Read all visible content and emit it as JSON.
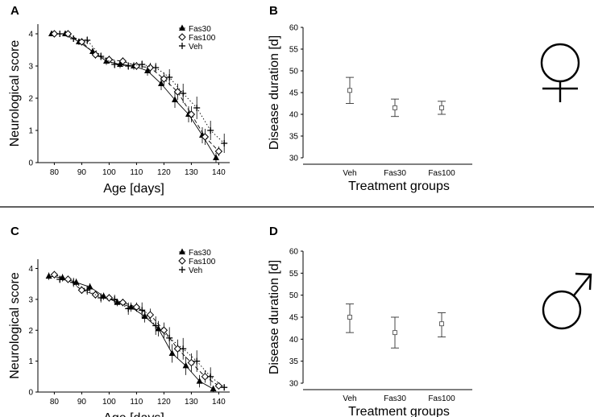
{
  "figure": {
    "separator": true
  },
  "chart_data": [
    {
      "id": "A",
      "panel_label": "A",
      "type": "line",
      "xlabel": "Age [days]",
      "ylabel": "Neurological score",
      "xlim": [
        74,
        144
      ],
      "ylim": [
        0,
        4.3
      ],
      "xticks": [
        80,
        90,
        100,
        110,
        120,
        130,
        140
      ],
      "yticks": [
        0,
        1,
        2,
        3,
        4
      ],
      "legend_position": "top-right",
      "legend": [
        "Fas30",
        "Fas100",
        "Veh"
      ],
      "series": [
        {
          "name": "Fas30",
          "marker": "filled-triangle",
          "line": "solid",
          "x": [
            79,
            84,
            89,
            94,
            99,
            104,
            109,
            114,
            119,
            124,
            129,
            134,
            139
          ],
          "y": [
            4.0,
            4.0,
            3.75,
            3.45,
            3.15,
            3.05,
            3.0,
            2.85,
            2.45,
            1.95,
            1.5,
            0.85,
            0.15
          ],
          "err": [
            0,
            0,
            0.1,
            0.12,
            0.12,
            0.12,
            0.12,
            0.15,
            0.2,
            0.25,
            0.25,
            0.25,
            0.15
          ]
        },
        {
          "name": "Fas100",
          "marker": "open-diamond",
          "line": "dashed",
          "x": [
            80,
            85,
            90,
            95,
            100,
            105,
            110,
            115,
            120,
            125,
            130,
            135,
            140
          ],
          "y": [
            4.0,
            4.0,
            3.75,
            3.35,
            3.2,
            3.15,
            3.0,
            2.95,
            2.6,
            2.2,
            1.5,
            0.8,
            0.35
          ],
          "err": [
            0,
            0,
            0.1,
            0.12,
            0.12,
            0.12,
            0.12,
            0.15,
            0.2,
            0.25,
            0.25,
            0.25,
            0.15
          ]
        },
        {
          "name": "Veh",
          "marker": "plus",
          "line": "dotted",
          "x": [
            82,
            87,
            92,
            97,
            102,
            107,
            112,
            117,
            122,
            127,
            132,
            137,
            142
          ],
          "y": [
            4.0,
            3.85,
            3.8,
            3.3,
            3.05,
            3.0,
            3.05,
            2.95,
            2.65,
            2.15,
            1.7,
            1.0,
            0.6
          ],
          "err": [
            0,
            0.1,
            0.12,
            0.12,
            0.12,
            0.12,
            0.12,
            0.15,
            0.25,
            0.3,
            0.35,
            0.3,
            0.3
          ]
        }
      ]
    },
    {
      "id": "B",
      "panel_label": "B",
      "type": "scatter",
      "xlabel": "Treatment groups",
      "ylabel": "Disease duration [d]",
      "ylim": [
        30,
        60
      ],
      "yticks": [
        30,
        35,
        40,
        45,
        50,
        55,
        60
      ],
      "categories": [
        "Veh",
        "Fas30",
        "Fas100"
      ],
      "values": [
        45.5,
        41.5,
        41.5
      ],
      "err_low": [
        42.5,
        39.5,
        40.0
      ],
      "err_high": [
        48.5,
        43.5,
        43.0
      ]
    },
    {
      "id": "C",
      "panel_label": "C",
      "type": "line",
      "xlabel": "Age [days]",
      "ylabel": "Neurological score",
      "xlim": [
        74,
        144
      ],
      "ylim": [
        0,
        4.3
      ],
      "xticks": [
        80,
        90,
        100,
        110,
        120,
        130,
        140
      ],
      "yticks": [
        0,
        1,
        2,
        3,
        4
      ],
      "legend_position": "top-right",
      "legend": [
        "Fas30",
        "Fas100",
        "Veh"
      ],
      "series": [
        {
          "name": "Fas30",
          "marker": "filled-triangle",
          "line": "solid",
          "x": [
            78,
            83,
            88,
            93,
            98,
            103,
            108,
            113,
            118,
            123,
            128,
            133,
            138
          ],
          "y": [
            3.75,
            3.7,
            3.55,
            3.4,
            3.1,
            2.9,
            2.75,
            2.45,
            2.05,
            1.25,
            0.85,
            0.35,
            0.1
          ],
          "err": [
            0.12,
            0.12,
            0.12,
            0.12,
            0.12,
            0.12,
            0.15,
            0.2,
            0.25,
            0.3,
            0.3,
            0.2,
            0.1
          ]
        },
        {
          "name": "Fas100",
          "marker": "open-diamond",
          "line": "dashed",
          "x": [
            80,
            85,
            90,
            95,
            100,
            105,
            110,
            115,
            120,
            125,
            130,
            135,
            140
          ],
          "y": [
            3.8,
            3.65,
            3.3,
            3.15,
            3.05,
            2.9,
            2.75,
            2.5,
            2.0,
            1.4,
            0.95,
            0.5,
            0.2
          ],
          "err": [
            0.12,
            0.12,
            0.12,
            0.12,
            0.12,
            0.12,
            0.15,
            0.2,
            0.25,
            0.3,
            0.3,
            0.2,
            0.1
          ]
        },
        {
          "name": "Veh",
          "marker": "plus",
          "line": "dotted",
          "x": [
            82,
            87,
            92,
            97,
            102,
            107,
            112,
            117,
            122,
            127,
            132,
            137,
            142
          ],
          "y": [
            3.65,
            3.55,
            3.3,
            3.05,
            3.0,
            2.7,
            2.65,
            2.15,
            1.75,
            1.4,
            1.0,
            0.5,
            0.15
          ],
          "err": [
            0.12,
            0.15,
            0.15,
            0.15,
            0.15,
            0.2,
            0.25,
            0.3,
            0.35,
            0.35,
            0.35,
            0.3,
            0.1
          ]
        }
      ]
    },
    {
      "id": "D",
      "panel_label": "D",
      "type": "scatter",
      "xlabel": "Treatment groups",
      "ylabel": "Disease duration [d]",
      "ylim": [
        30,
        60
      ],
      "yticks": [
        30,
        35,
        40,
        45,
        50,
        55,
        60
      ],
      "categories": [
        "Veh",
        "Fas30",
        "Fas100"
      ],
      "values": [
        45.0,
        41.5,
        43.5
      ],
      "err_low": [
        41.5,
        38.0,
        40.5
      ],
      "err_high": [
        48.0,
        45.0,
        46.0
      ]
    }
  ],
  "symbols": [
    {
      "panel": "B",
      "name": "female-symbol"
    },
    {
      "panel": "D",
      "name": "male-symbol"
    }
  ]
}
